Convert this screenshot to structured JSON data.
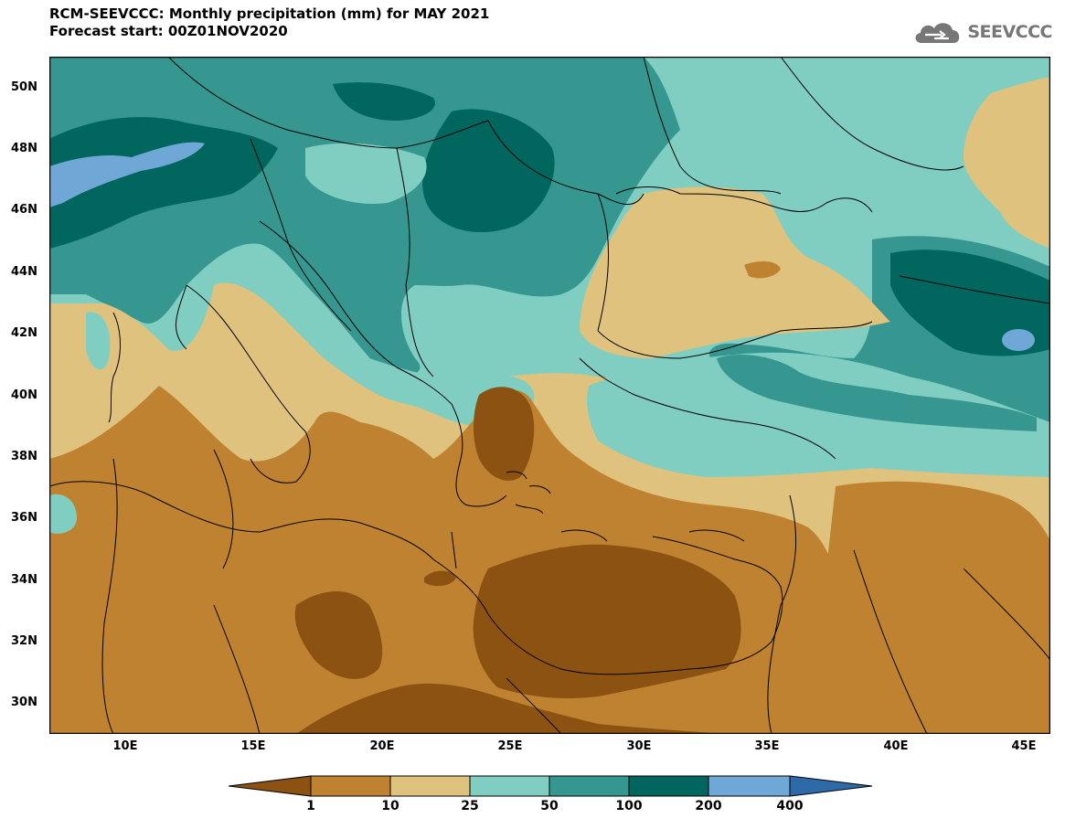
{
  "title": {
    "line1": "RCM-SEEVCCC: Monthly precipitation (mm) for MAY 2021",
    "line2": "Forecast start: 00Z01NOV2020"
  },
  "logo": {
    "text": "SEEVCCC",
    "icon": "cloud-logo-icon"
  },
  "map": {
    "lat_labels": [
      "50N",
      "48N",
      "46N",
      "44N",
      "42N",
      "40N",
      "38N",
      "36N",
      "34N",
      "32N",
      "30N"
    ],
    "lon_labels": [
      "10E",
      "15E",
      "20E",
      "25E",
      "30E",
      "35E",
      "40E",
      "45E"
    ],
    "lat_range": [
      29,
      51
    ],
    "lon_range": [
      7,
      46
    ]
  },
  "legend": {
    "thresholds": [
      "1",
      "10",
      "25",
      "50",
      "100",
      "200",
      "400"
    ],
    "colors": [
      "#8c5211",
      "#bf8230",
      "#dfc27d",
      "#80cdc1",
      "#35978f",
      "#01665e",
      "#6fa8d6",
      "#2c6aa8"
    ]
  }
}
